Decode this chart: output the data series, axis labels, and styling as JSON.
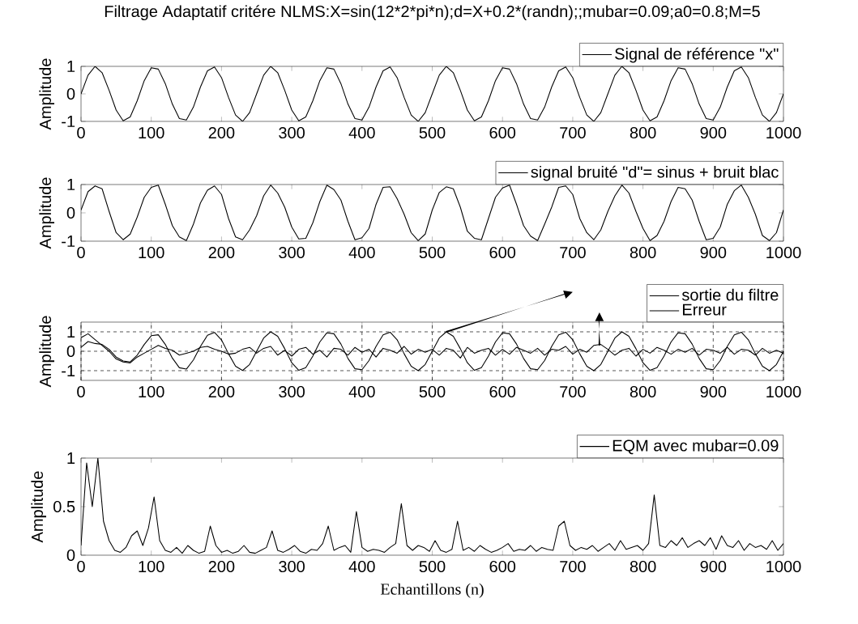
{
  "chart_data": [
    {
      "type": "line",
      "title": "Filtrage Adaptatif critére NLMS:X=sin(12*2*pi*n);d=X+0.2*(randn);;mubar=0.09;a0=0.8;M=5",
      "ylabel": "Amplitude",
      "x": [
        0,
        10,
        20,
        30,
        40,
        50,
        60,
        70,
        80,
        90,
        100,
        110,
        120,
        130,
        140,
        150,
        160,
        170,
        180,
        190,
        200,
        210,
        220,
        230,
        240,
        250,
        260,
        270,
        280,
        290,
        300,
        310,
        320,
        330,
        340,
        350,
        360,
        370,
        380,
        390,
        400,
        410,
        420,
        430,
        440,
        450,
        460,
        470,
        480,
        490,
        500,
        510,
        520,
        530,
        540,
        550,
        560,
        570,
        580,
        590,
        600,
        610,
        620,
        630,
        640,
        650,
        660,
        670,
        680,
        690,
        700,
        710,
        720,
        730,
        740,
        750,
        760,
        770,
        780,
        790,
        800,
        810,
        820,
        830,
        840,
        850,
        860,
        870,
        880,
        890,
        900,
        910,
        920,
        930,
        940,
        950,
        960,
        970,
        980,
        990,
        1000
      ],
      "xlim": [
        0,
        1000
      ],
      "xticks": [
        0,
        100,
        200,
        300,
        400,
        500,
        600,
        700,
        800,
        900,
        1000
      ],
      "ylim": [
        -1,
        1
      ],
      "yticks": [
        -1,
        0,
        1
      ],
      "legend": "top right",
      "series": [
        {
          "name": "Signal de référence \"x\"",
          "color": "#000000",
          "values": [
            0,
            0.68,
            1.0,
            0.77,
            0.13,
            -0.59,
            -0.98,
            -0.84,
            -0.25,
            0.48,
            0.95,
            0.9,
            0.37,
            -0.37,
            -0.9,
            -0.95,
            -0.48,
            0.25,
            0.84,
            0.98,
            0.59,
            -0.13,
            -0.77,
            -1.0,
            -0.68,
            0,
            0.68,
            1.0,
            0.77,
            0.13,
            -0.59,
            -0.98,
            -0.84,
            -0.25,
            0.48,
            0.95,
            0.9,
            0.37,
            -0.37,
            -0.9,
            -0.95,
            -0.48,
            0.25,
            0.84,
            0.98,
            0.59,
            -0.13,
            -0.77,
            -1.0,
            -0.68,
            0,
            0.68,
            1.0,
            0.77,
            0.13,
            -0.59,
            -0.98,
            -0.84,
            -0.25,
            0.48,
            0.95,
            0.9,
            0.37,
            -0.37,
            -0.9,
            -0.95,
            -0.48,
            0.25,
            0.84,
            0.98,
            0.59,
            -0.13,
            -0.77,
            -1.0,
            -0.68,
            0,
            0.68,
            1.0,
            0.77,
            0.13,
            -0.59,
            -0.98,
            -0.84,
            -0.25,
            0.48,
            0.95,
            0.9,
            0.37,
            -0.37,
            -0.9,
            -0.95,
            -0.48,
            0.25,
            0.84,
            0.98,
            0.59,
            -0.13,
            -0.77,
            -1.0,
            -0.68,
            0
          ]
        }
      ]
    },
    {
      "type": "line",
      "ylabel": "Amplitude",
      "x": [
        0,
        10,
        20,
        30,
        40,
        50,
        60,
        70,
        80,
        90,
        100,
        110,
        120,
        130,
        140,
        150,
        160,
        170,
        180,
        190,
        200,
        210,
        220,
        230,
        240,
        250,
        260,
        270,
        280,
        290,
        300,
        310,
        320,
        330,
        340,
        350,
        360,
        370,
        380,
        390,
        400,
        410,
        420,
        430,
        440,
        450,
        460,
        470,
        480,
        490,
        500,
        510,
        520,
        530,
        540,
        550,
        560,
        570,
        580,
        590,
        600,
        610,
        620,
        630,
        640,
        650,
        660,
        670,
        680,
        690,
        700,
        710,
        720,
        730,
        740,
        750,
        760,
        770,
        780,
        790,
        800,
        810,
        820,
        830,
        840,
        850,
        860,
        870,
        880,
        890,
        900,
        910,
        920,
        930,
        940,
        950,
        960,
        970,
        980,
        990,
        1000
      ],
      "xlim": [
        0,
        1000
      ],
      "xticks": [
        0,
        100,
        200,
        300,
        400,
        500,
        600,
        700,
        800,
        900,
        1000
      ],
      "ylim": [
        -1,
        1
      ],
      "yticks": [
        -1,
        0,
        1
      ],
      "legend": "top right",
      "series": [
        {
          "name": "signal bruité  \"d\"= sinus + bruit blac",
          "color": "#000000",
          "values": [
            0.1,
            0.75,
            0.95,
            0.85,
            0.05,
            -0.7,
            -0.95,
            -0.75,
            -0.15,
            0.55,
            0.9,
            0.98,
            0.3,
            -0.45,
            -0.85,
            -0.98,
            -0.4,
            0.35,
            0.8,
            0.95,
            0.65,
            -0.2,
            -0.85,
            -0.95,
            -0.6,
            -0.1,
            0.6,
            0.98,
            0.7,
            0.2,
            -0.5,
            -0.92,
            -0.9,
            -0.35,
            0.4,
            0.98,
            0.82,
            0.45,
            -0.3,
            -0.95,
            -0.88,
            -0.55,
            0.3,
            0.9,
            0.92,
            0.5,
            -0.05,
            -0.7,
            -0.98,
            -0.75,
            0.1,
            0.72,
            0.92,
            0.85,
            0.2,
            -0.65,
            -0.9,
            -0.95,
            -0.2,
            0.55,
            0.88,
            0.98,
            0.3,
            -0.45,
            -0.82,
            -0.98,
            -0.4,
            0.2,
            0.9,
            0.95,
            0.65,
            -0.2,
            -0.7,
            -0.95,
            -0.6,
            0.05,
            0.6,
            0.98,
            0.7,
            0.05,
            -0.55,
            -0.98,
            -0.8,
            -0.3,
            0.4,
            0.9,
            0.85,
            0.45,
            -0.3,
            -0.95,
            -0.9,
            -0.5,
            0.3,
            0.78,
            0.98,
            0.55,
            -0.05,
            -0.8,
            -0.98,
            -0.7,
            0.1
          ]
        }
      ]
    },
    {
      "type": "line",
      "ylabel": "Amplitude",
      "grid": true,
      "x": [
        0,
        10,
        20,
        30,
        40,
        50,
        60,
        70,
        80,
        90,
        100,
        110,
        120,
        130,
        140,
        150,
        160,
        170,
        180,
        190,
        200,
        210,
        220,
        230,
        240,
        250,
        260,
        270,
        280,
        290,
        300,
        310,
        320,
        330,
        340,
        350,
        360,
        370,
        380,
        390,
        400,
        410,
        420,
        430,
        440,
        450,
        460,
        470,
        480,
        490,
        500,
        510,
        520,
        530,
        540,
        550,
        560,
        570,
        580,
        590,
        600,
        610,
        620,
        630,
        640,
        650,
        660,
        670,
        680,
        690,
        700,
        710,
        720,
        730,
        740,
        750,
        760,
        770,
        780,
        790,
        800,
        810,
        820,
        830,
        840,
        850,
        860,
        870,
        880,
        890,
        900,
        910,
        920,
        930,
        940,
        950,
        960,
        970,
        980,
        990,
        1000
      ],
      "xlim": [
        0,
        1000
      ],
      "xticks": [
        0,
        100,
        200,
        300,
        400,
        500,
        600,
        700,
        800,
        900,
        1000
      ],
      "ylim": [
        -1.5,
        1.5
      ],
      "yticks": [
        -1,
        0,
        1
      ],
      "legend": "top right",
      "series": [
        {
          "name": "sortie du filtre",
          "color": "#000000",
          "values": [
            0.2,
            0.5,
            0.4,
            0.35,
            0.1,
            -0.3,
            -0.5,
            -0.55,
            -0.2,
            0.35,
            0.8,
            0.85,
            0.35,
            -0.35,
            -0.85,
            -0.92,
            -0.45,
            0.25,
            0.82,
            0.97,
            0.58,
            -0.13,
            -0.77,
            -0.99,
            -0.68,
            0,
            0.68,
            1.0,
            0.77,
            0.13,
            -0.59,
            -0.98,
            -0.84,
            -0.25,
            0.48,
            0.95,
            0.9,
            0.37,
            -0.37,
            -0.9,
            -0.95,
            -0.48,
            0.25,
            0.84,
            0.98,
            0.59,
            -0.13,
            -0.77,
            -1.0,
            -0.68,
            0,
            0.68,
            1.0,
            0.77,
            0.13,
            -0.59,
            -0.98,
            -0.84,
            -0.25,
            0.48,
            0.95,
            0.9,
            0.37,
            -0.37,
            -0.9,
            -0.95,
            -0.48,
            0.25,
            0.84,
            0.98,
            0.59,
            -0.13,
            -0.77,
            -1.0,
            -0.68,
            0,
            0.68,
            1.0,
            0.77,
            0.13,
            -0.59,
            -0.98,
            -0.84,
            -0.25,
            0.48,
            0.95,
            0.9,
            0.37,
            -0.37,
            -0.9,
            -0.95,
            -0.48,
            0.25,
            0.84,
            0.98,
            0.59,
            -0.13,
            -0.77,
            -1.0,
            -0.68,
            0
          ]
        },
        {
          "name": "Erreur",
          "color": "#000000",
          "values": [
            0.7,
            0.9,
            0.6,
            0.3,
            0.0,
            -0.4,
            -0.55,
            -0.6,
            -0.3,
            -0.1,
            0.1,
            0.3,
            0.15,
            0.05,
            -0.2,
            -0.1,
            0.0,
            0.2,
            0.25,
            0.1,
            0.0,
            -0.15,
            -0.1,
            0.1,
            0.2,
            -0.1,
            0.15,
            0.25,
            -0.2,
            0.05,
            -0.25,
            0.1,
            0.2,
            -0.15,
            0.05,
            -0.3,
            0.15,
            0.1,
            -0.2,
            0.2,
            -0.05,
            0.1,
            -0.3,
            0.15,
            0.05,
            -0.1,
            0.25,
            -0.15,
            0.1,
            -0.05,
            0.1,
            -0.2,
            0.15,
            0.05,
            -0.35,
            0.2,
            -0.1,
            0.05,
            0.15,
            -0.2,
            0.1,
            -0.15,
            0.2,
            0.05,
            -0.1,
            0.15,
            -0.2,
            0.1,
            0.05,
            0.25,
            -0.15,
            0.1,
            -0.05,
            0.3,
            0.35,
            0.1,
            -0.2,
            0.05,
            0.15,
            -0.25,
            0.1,
            -0.1,
            0.2,
            0.05,
            -0.15,
            0.1,
            -0.05,
            0.15,
            -0.2,
            0.1,
            0.05,
            -0.1,
            0.2,
            -0.15,
            0.1,
            0.05,
            -0.2,
            0.15,
            -0.1,
            0.05,
            -0.1
          ]
        }
      ]
    },
    {
      "type": "line",
      "ylabel": "Amplitude",
      "xlabel": "Echantillons (n)",
      "x": [
        0,
        8,
        16,
        24,
        32,
        40,
        48,
        56,
        64,
        72,
        80,
        88,
        96,
        104,
        112,
        120,
        128,
        136,
        144,
        152,
        160,
        168,
        176,
        184,
        192,
        200,
        208,
        216,
        224,
        232,
        240,
        248,
        256,
        264,
        272,
        280,
        288,
        296,
        304,
        312,
        320,
        328,
        336,
        344,
        352,
        360,
        368,
        376,
        384,
        392,
        400,
        408,
        416,
        424,
        432,
        440,
        448,
        456,
        464,
        472,
        480,
        488,
        496,
        504,
        512,
        520,
        528,
        536,
        544,
        552,
        560,
        568,
        576,
        584,
        592,
        600,
        608,
        616,
        624,
        632,
        640,
        648,
        656,
        664,
        672,
        680,
        688,
        696,
        704,
        712,
        720,
        728,
        736,
        744,
        752,
        760,
        768,
        776,
        784,
        792,
        800,
        808,
        816,
        824,
        832,
        840,
        848,
        856,
        864,
        872,
        880,
        888,
        896,
        904,
        912,
        920,
        928,
        936,
        944,
        952,
        960,
        968,
        976,
        984,
        992,
        1000
      ],
      "xlim": [
        0,
        1000
      ],
      "xticks": [
        0,
        100,
        200,
        300,
        400,
        500,
        600,
        700,
        800,
        900,
        1000
      ],
      "ylim": [
        0,
        1
      ],
      "yticks": [
        0,
        0.5,
        1
      ],
      "legend": "top right",
      "series": [
        {
          "name": "EQM avec mubar=0.09",
          "color": "#000000",
          "values": [
            0.1,
            0.95,
            0.5,
            1.0,
            0.35,
            0.15,
            0.05,
            0.03,
            0.08,
            0.2,
            0.25,
            0.1,
            0.28,
            0.6,
            0.15,
            0.05,
            0.03,
            0.08,
            0.02,
            0.1,
            0.05,
            0.02,
            0.04,
            0.3,
            0.1,
            0.03,
            0.05,
            0.02,
            0.04,
            0.1,
            0.03,
            0.02,
            0.05,
            0.08,
            0.25,
            0.05,
            0.03,
            0.06,
            0.1,
            0.04,
            0.02,
            0.06,
            0.05,
            0.12,
            0.3,
            0.05,
            0.08,
            0.1,
            0.03,
            0.45,
            0.08,
            0.04,
            0.06,
            0.05,
            0.03,
            0.08,
            0.12,
            0.53,
            0.1,
            0.05,
            0.1,
            0.08,
            0.04,
            0.15,
            0.05,
            0.03,
            0.06,
            0.35,
            0.05,
            0.08,
            0.04,
            0.1,
            0.06,
            0.03,
            0.05,
            0.08,
            0.12,
            0.04,
            0.06,
            0.05,
            0.1,
            0.04,
            0.08,
            0.06,
            0.05,
            0.3,
            0.35,
            0.1,
            0.05,
            0.08,
            0.06,
            0.1,
            0.04,
            0.08,
            0.12,
            0.05,
            0.15,
            0.06,
            0.08,
            0.1,
            0.05,
            0.12,
            0.62,
            0.1,
            0.08,
            0.15,
            0.1,
            0.18,
            0.08,
            0.12,
            0.15,
            0.1,
            0.18,
            0.06,
            0.2,
            0.1,
            0.08,
            0.15,
            0.05,
            0.12,
            0.08,
            0.1,
            0.06,
            0.15,
            0.05,
            0.12
          ]
        }
      ]
    }
  ]
}
